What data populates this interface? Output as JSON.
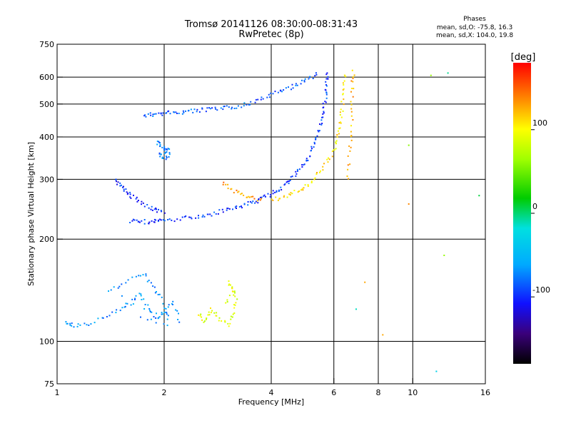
{
  "chart_data": {
    "type": "scatter",
    "title": "Tromsø 20141126 08:30:00-08:31:43",
    "subtitle": "RwPretec (8p)",
    "phases": {
      "title": "Phases",
      "o_line": "mean, sd,O: -75.8, 16.3",
      "x_line": "mean, sd,X: 104.0, 19.8"
    },
    "xlabel": "Frequency [MHz]",
    "ylabel": "Stationary phase Virtual Height [km]",
    "x_scale": "log",
    "y_scale": "log",
    "xlim": [
      1,
      16
    ],
    "ylim": [
      75,
      750
    ],
    "x_ticks": [
      1,
      2,
      4,
      6,
      8,
      10,
      16
    ],
    "y_ticks": [
      75,
      100,
      200,
      300,
      400,
      500,
      600,
      750
    ],
    "grid": true,
    "colorbar": {
      "unit": "[deg]",
      "range": [
        -180,
        180
      ],
      "ticks": [
        100,
        0,
        -100
      ]
    },
    "series": [
      {
        "name": "",
        "color_value": -85,
        "points": [
          [
            1.75,
            465
          ],
          [
            1.85,
            468
          ],
          [
            1.95,
            470
          ],
          [
            2.05,
            473
          ],
          [
            2.2,
            475
          ],
          [
            2.35,
            478
          ],
          [
            2.5,
            481
          ],
          [
            2.7,
            484
          ],
          [
            2.9,
            487
          ],
          [
            3.1,
            492
          ],
          [
            3.35,
            500
          ],
          [
            3.6,
            512
          ],
          [
            3.9,
            530
          ],
          [
            4.2,
            545
          ],
          [
            4.5,
            562
          ],
          [
            4.8,
            580
          ],
          [
            5.1,
            600
          ],
          [
            5.4,
            615
          ]
        ]
      },
      {
        "name": "",
        "color_value": -95,
        "points": [
          [
            1.6,
            228
          ],
          [
            1.7,
            226
          ],
          [
            1.8,
            226
          ],
          [
            1.9,
            227
          ],
          [
            2.0,
            228
          ],
          [
            2.2,
            230
          ],
          [
            2.4,
            233
          ],
          [
            2.6,
            236
          ],
          [
            2.8,
            240
          ],
          [
            3.0,
            245
          ],
          [
            3.2,
            250
          ],
          [
            3.4,
            255
          ],
          [
            3.6,
            260
          ],
          [
            3.8,
            266
          ],
          [
            4.0,
            274
          ],
          [
            4.2,
            283
          ],
          [
            4.4,
            294
          ],
          [
            4.6,
            306
          ],
          [
            4.8,
            322
          ],
          [
            5.0,
            342
          ],
          [
            5.15,
            365
          ],
          [
            5.3,
            392
          ],
          [
            5.45,
            425
          ],
          [
            5.55,
            460
          ],
          [
            5.62,
            500
          ],
          [
            5.68,
            545
          ],
          [
            5.72,
            590
          ],
          [
            5.75,
            630
          ]
        ]
      },
      {
        "name": "",
        "color_value": -75,
        "points": [
          [
            1.9,
            390
          ],
          [
            1.95,
            380
          ],
          [
            2.0,
            372
          ],
          [
            2.05,
            365
          ],
          [
            1.92,
            355
          ],
          [
            2.0,
            350
          ],
          [
            2.1,
            360
          ]
        ]
      },
      {
        "name": "",
        "color_value": -100,
        "points": [
          [
            1.45,
            300
          ],
          [
            1.5,
            290
          ],
          [
            1.55,
            280
          ],
          [
            1.6,
            270
          ],
          [
            1.7,
            260
          ],
          [
            1.8,
            250
          ],
          [
            1.9,
            245
          ],
          [
            2.0,
            240
          ]
        ]
      },
      {
        "name": "",
        "color_value": 110,
        "points": [
          [
            4.0,
            262
          ],
          [
            4.3,
            268
          ],
          [
            4.6,
            275
          ],
          [
            4.9,
            284
          ],
          [
            5.2,
            298
          ],
          [
            5.5,
            318
          ],
          [
            5.8,
            345
          ],
          [
            6.0,
            375
          ],
          [
            6.15,
            410
          ],
          [
            6.25,
            450
          ],
          [
            6.32,
            500
          ],
          [
            6.38,
            560
          ],
          [
            6.42,
            620
          ]
        ]
      },
      {
        "name": "",
        "color_value": 130,
        "points": [
          [
            2.9,
            295
          ],
          [
            3.1,
            280
          ],
          [
            3.3,
            272
          ],
          [
            3.5,
            266
          ],
          [
            3.8,
            263
          ]
        ]
      },
      {
        "name": "",
        "color_value": 125,
        "points": [
          [
            6.55,
            300
          ],
          [
            6.62,
            360
          ],
          [
            6.68,
            420
          ],
          [
            6.72,
            500
          ],
          [
            6.75,
            580
          ],
          [
            6.78,
            640
          ]
        ]
      },
      {
        "name": "",
        "color_value": -70,
        "points": [
          [
            1.05,
            115
          ],
          [
            1.1,
            112
          ],
          [
            1.2,
            112
          ],
          [
            1.35,
            118
          ],
          [
            1.5,
            125
          ],
          [
            1.6,
            130
          ],
          [
            1.7,
            140
          ],
          [
            1.8,
            125
          ],
          [
            1.9,
            118
          ],
          [
            2.0,
            122
          ],
          [
            2.1,
            130
          ],
          [
            2.2,
            115
          ],
          [
            1.4,
            140
          ],
          [
            1.55,
            150
          ],
          [
            1.75,
            160
          ],
          [
            1.85,
            145
          ],
          [
            1.95,
            135
          ],
          [
            2.05,
            112
          ],
          [
            1.65,
            118
          ]
        ]
      },
      {
        "name": "",
        "color_value": 90,
        "points": [
          [
            2.5,
            120
          ],
          [
            2.6,
            115
          ],
          [
            2.7,
            125
          ],
          [
            2.8,
            118
          ],
          [
            3.0,
            112
          ],
          [
            3.1,
            120
          ],
          [
            3.2,
            135
          ],
          [
            3.0,
            150
          ],
          [
            3.15,
            140
          ],
          [
            2.9,
            130
          ]
        ]
      }
    ],
    "scattered_points": [
      [
        8.2,
        105
      ],
      [
        7.3,
        150
      ],
      [
        9.7,
        380
      ],
      [
        9.7,
        255
      ],
      [
        11.2,
        610
      ],
      [
        12.5,
        620
      ],
      [
        12.2,
        180
      ],
      [
        15.3,
        270
      ],
      [
        11.6,
        82
      ],
      [
        6.9,
        125
      ]
    ]
  }
}
